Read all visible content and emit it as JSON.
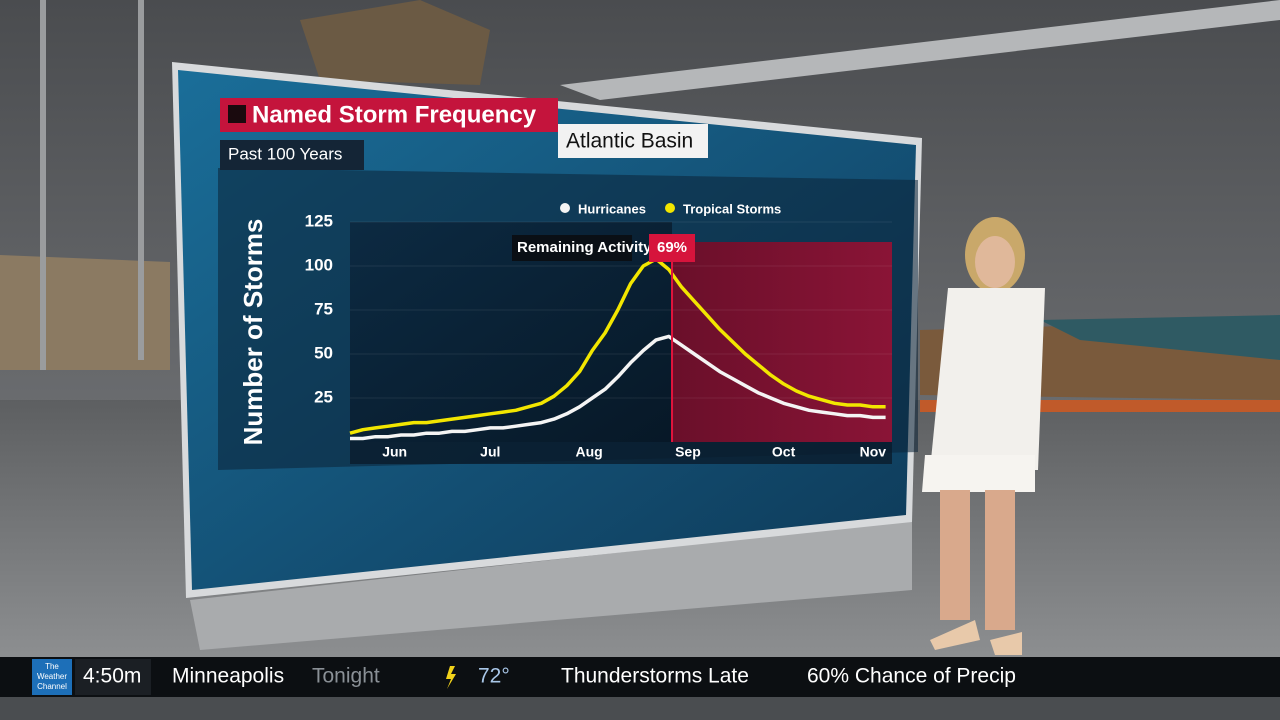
{
  "chart_data": {
    "type": "line",
    "title": "Named Storm Frequency",
    "title_tag": "Atlantic Basin",
    "subtitle": "Past 100 Years",
    "ylabel": "Number of Storms",
    "x": [
      0,
      4,
      8,
      12,
      16,
      20,
      24,
      28,
      32,
      36,
      40,
      44,
      48,
      52,
      56,
      60,
      64,
      68,
      72,
      76,
      80,
      84,
      88,
      92,
      96,
      100,
      104,
      108,
      112,
      116,
      120,
      124,
      128,
      132,
      136,
      140,
      144,
      148,
      152,
      156,
      160,
      164,
      168
    ],
    "xlim": [
      0,
      170
    ],
    "xticks": [
      {
        "value": 14,
        "label": "Jun"
      },
      {
        "value": 44,
        "label": "Jul"
      },
      {
        "value": 75,
        "label": "Aug"
      },
      {
        "value": 106,
        "label": "Sep"
      },
      {
        "value": 136,
        "label": "Oct"
      },
      {
        "value": 164,
        "label": "Nov"
      }
    ],
    "ylim": [
      0,
      125
    ],
    "yticks": [
      25,
      50,
      75,
      100,
      125
    ],
    "grid": true,
    "series": [
      {
        "name": "Hurricanes",
        "color": "#f4f4f4",
        "values": [
          2,
          2,
          3,
          3,
          4,
          4,
          5,
          5,
          6,
          6,
          7,
          8,
          8,
          9,
          10,
          11,
          13,
          16,
          20,
          25,
          30,
          37,
          45,
          52,
          58,
          60,
          55,
          50,
          45,
          40,
          36,
          32,
          28,
          25,
          22,
          20,
          18,
          17,
          16,
          15,
          15,
          14,
          14
        ]
      },
      {
        "name": "Tropical Storms",
        "color": "#f2e600",
        "values": [
          5,
          7,
          8,
          9,
          10,
          11,
          11,
          12,
          13,
          14,
          15,
          16,
          17,
          18,
          20,
          22,
          26,
          32,
          40,
          52,
          62,
          75,
          90,
          100,
          104,
          98,
          88,
          80,
          72,
          64,
          57,
          50,
          44,
          38,
          33,
          29,
          26,
          24,
          22,
          21,
          21,
          20,
          20
        ]
      }
    ],
    "annotation": {
      "label": "Remaining Activity",
      "x": 101,
      "value": 69,
      "value_label": "69%"
    }
  },
  "ticker": {
    "logo": [
      "The",
      "Weather",
      "Channel"
    ],
    "time": "4:50m",
    "city": "Minneapolis",
    "period": "Tonight",
    "temp": "72°",
    "condition": "Thunderstorms Late",
    "precip": "60% Chance of Precip"
  }
}
